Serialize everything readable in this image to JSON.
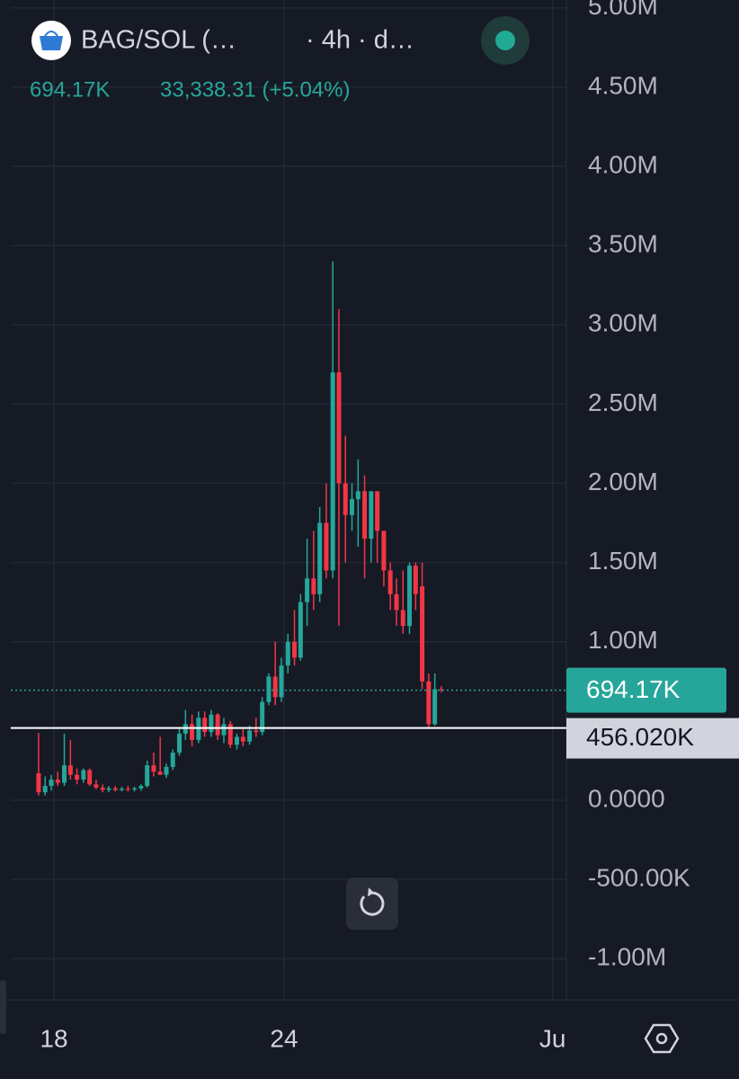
{
  "header": {
    "symbol": "BAG/SOL (…",
    "interval": "· 4h · d…",
    "change": "33,338.31 (+5.04%)"
  },
  "chart_data": {
    "type": "candlestick",
    "x": [
      17.6,
      17.77,
      17.93,
      18.1,
      18.27,
      18.43,
      18.6,
      18.77,
      18.93,
      19.1,
      19.27,
      19.43,
      19.6,
      19.77,
      19.93,
      20.1,
      20.27,
      20.43,
      20.6,
      20.77,
      20.93,
      21.1,
      21.27,
      21.43,
      21.6,
      21.77,
      21.93,
      22.1,
      22.27,
      22.43,
      22.6,
      22.77,
      22.93,
      23.1,
      23.27,
      23.43,
      23.6,
      23.77,
      23.93,
      24.1,
      24.27,
      24.43,
      24.6,
      24.77,
      24.93,
      25.1,
      25.27,
      25.43,
      25.6,
      25.77,
      25.93,
      26.1,
      26.27,
      26.43,
      26.6,
      26.77,
      26.93,
      27.1,
      27.27,
      27.43,
      27.6,
      27.77,
      27.93,
      28.1
    ],
    "open": [
      170000,
      50000,
      90000,
      130000,
      110000,
      220000,
      160000,
      130000,
      190000,
      100000,
      80000,
      65000,
      75000,
      65000,
      72000,
      68000,
      75000,
      90000,
      220000,
      180000,
      160000,
      210000,
      300000,
      420000,
      480000,
      380000,
      520000,
      430000,
      540000,
      410000,
      480000,
      350000,
      400000,
      370000,
      440000,
      430000,
      620000,
      780000,
      650000,
      850000,
      1000000,
      900000,
      1250000,
      1400000,
      1300000,
      1750000,
      1450000,
      2700000,
      2000000,
      1800000,
      1900000,
      1950000,
      1650000,
      1950000,
      1700000,
      1450000,
      1300000,
      1200000,
      1100000,
      1480000,
      1350000,
      750000,
      480000,
      700000
    ],
    "high": [
      425000,
      150000,
      160000,
      180000,
      420000,
      380000,
      200000,
      200000,
      200000,
      130000,
      100000,
      90000,
      90000,
      85000,
      90000,
      85000,
      100000,
      250000,
      300000,
      400000,
      230000,
      320000,
      450000,
      570000,
      540000,
      560000,
      560000,
      570000,
      550000,
      520000,
      500000,
      420000,
      450000,
      470000,
      520000,
      650000,
      800000,
      1000000,
      900000,
      1050000,
      1200000,
      1300000,
      1650000,
      1700000,
      1850000,
      2000000,
      3400000,
      3100000,
      2300000,
      2000000,
      2150000,
      2050000,
      1950000,
      1950000,
      1700000,
      1500000,
      1400000,
      1450000,
      1500000,
      1500000,
      1500000,
      800000,
      800000,
      720000
    ],
    "low": [
      30000,
      30000,
      60000,
      90000,
      90000,
      130000,
      100000,
      110000,
      90000,
      70000,
      50000,
      50000,
      55000,
      55000,
      55000,
      55000,
      60000,
      80000,
      150000,
      160000,
      140000,
      190000,
      280000,
      380000,
      340000,
      360000,
      400000,
      400000,
      380000,
      360000,
      330000,
      320000,
      340000,
      350000,
      400000,
      410000,
      600000,
      600000,
      620000,
      800000,
      850000,
      880000,
      1100000,
      1200000,
      1250000,
      1400000,
      1400000,
      1100000,
      1500000,
      1700000,
      1600000,
      1400000,
      1500000,
      1500000,
      1350000,
      1200000,
      1100000,
      1050000,
      1050000,
      1200000,
      700000,
      456000,
      470000,
      680000
    ],
    "close": [
      50000,
      90000,
      130000,
      110000,
      220000,
      160000,
      130000,
      190000,
      100000,
      80000,
      65000,
      75000,
      65000,
      72000,
      68000,
      75000,
      90000,
      220000,
      180000,
      160000,
      210000,
      300000,
      420000,
      480000,
      380000,
      520000,
      430000,
      540000,
      410000,
      480000,
      350000,
      400000,
      370000,
      440000,
      430000,
      620000,
      780000,
      650000,
      850000,
      1000000,
      900000,
      1250000,
      1400000,
      1300000,
      1750000,
      1450000,
      2700000,
      2000000,
      1800000,
      1900000,
      1950000,
      1650000,
      1950000,
      1700000,
      1450000,
      1300000,
      1200000,
      1100000,
      1480000,
      1300000,
      750000,
      480000,
      700000,
      694170
    ],
    "up_color": "#26a69a",
    "down_color": "#f23645",
    "xlim": [
      16.875,
      31.36
    ],
    "xticks": [
      {
        "value": 18,
        "label": "18"
      },
      {
        "value": 24,
        "label": "24"
      },
      {
        "value": 31,
        "label": "Ju"
      }
    ],
    "ylim": [
      -1260000,
      5050000
    ],
    "yticks": [
      {
        "value": 5000000,
        "label": "5.00M"
      },
      {
        "value": 4500000,
        "label": "4.50M"
      },
      {
        "value": 4000000,
        "label": "4.00M"
      },
      {
        "value": 3500000,
        "label": "3.50M"
      },
      {
        "value": 3000000,
        "label": "3.00M"
      },
      {
        "value": 2500000,
        "label": "2.50M"
      },
      {
        "value": 2000000,
        "label": "2.00M"
      },
      {
        "value": 1500000,
        "label": "1.50M"
      },
      {
        "value": 1000000,
        "label": "1.00M"
      },
      {
        "value": 0,
        "label": "0.0000"
      },
      {
        "value": -500000,
        "label": "-500.00K"
      },
      {
        "value": -1000000,
        "label": "-1.00M"
      }
    ],
    "grid": true,
    "last_price": {
      "value": 694170,
      "label": "694.17K"
    },
    "marked_level": {
      "value": 456020,
      "label": "456.020K"
    }
  }
}
